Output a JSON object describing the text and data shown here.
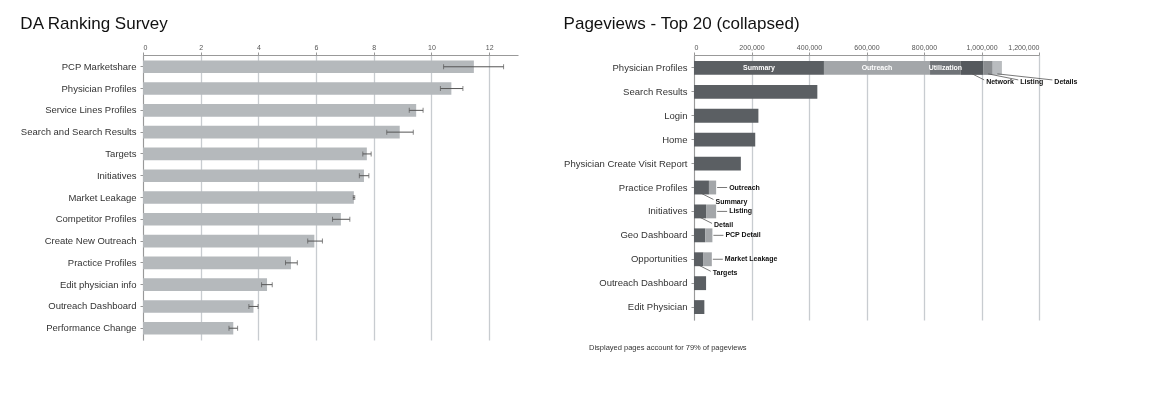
{
  "chart_data": [
    {
      "type": "bar",
      "orientation": "horizontal",
      "title": "DA Ranking Survey",
      "categories": [
        "PCP Marketshare",
        "Physician Profiles",
        "Service Lines Profiles",
        "Search and Search Results",
        "Targets",
        "Initiatives",
        "Market Leakage",
        "Competitor Profiles",
        "Create New Outreach",
        "Practice Profiles",
        "Edit physician info",
        "Outreach Dashboard",
        "Performance Change"
      ],
      "values": [
        11.47,
        10.69,
        9.47,
        8.9,
        7.76,
        7.66,
        7.31,
        6.86,
        5.94,
        5.13,
        4.3,
        3.83,
        3.13
      ],
      "errors": [
        [
          10.42,
          12.5
        ],
        [
          10.31,
          11.09
        ],
        [
          9.23,
          9.71
        ],
        [
          8.45,
          9.37
        ],
        [
          7.62,
          7.91
        ],
        [
          7.5,
          7.83
        ],
        [
          7.29,
          7.34
        ],
        [
          6.57,
          7.17
        ],
        [
          5.71,
          6.22
        ],
        [
          4.94,
          5.35
        ],
        [
          4.11,
          4.48
        ],
        [
          3.67,
          3.99
        ],
        [
          2.98,
          3.28
        ]
      ],
      "color": "#b5b9bc",
      "xlim": [
        0,
        13
      ],
      "xticks": [
        0,
        2,
        4,
        6,
        8,
        10,
        12
      ],
      "grid": "x"
    },
    {
      "type": "bar",
      "orientation": "horizontal",
      "stacked": true,
      "title": "Pageviews - Top 20 (collapsed)",
      "categories": [
        "Physician Profiles",
        "Search Results",
        "Login",
        "Home",
        "Physician Create Visit Report",
        "Practice Profiles",
        "Initiatives",
        "Geo Dashboard",
        "Opportunities",
        "Outreach Dashboard",
        "Edit Physician"
      ],
      "series": [
        {
          "color": "#5b5f63",
          "values": [
            452000,
            429000,
            224000,
            213000,
            163000,
            52000,
            42000,
            39000,
            33000,
            42000,
            36000
          ],
          "value_labels": [
            "Summary",
            null,
            null,
            null,
            null,
            null,
            null,
            null,
            null,
            null,
            null
          ]
        },
        {
          "color": "#a3a6a9",
          "values": [
            369000,
            null,
            null,
            null,
            null,
            25000,
            35000,
            25000,
            29000,
            null,
            null
          ],
          "value_labels": [
            "Outreach",
            null,
            null,
            null,
            null,
            null,
            null,
            null,
            null,
            null,
            null
          ]
        },
        {
          "color": "#6f7377",
          "values": [
            107000,
            null,
            null,
            null,
            null,
            null,
            null,
            null,
            null,
            null,
            null
          ],
          "value_labels": [
            "Utilization",
            null,
            null,
            null,
            null,
            null,
            null,
            null,
            null,
            null,
            null
          ]
        },
        {
          "color": "#55595d",
          "values": [
            79000,
            null,
            null,
            null,
            null,
            null,
            null,
            null,
            null,
            null,
            null
          ]
        },
        {
          "color": "#8b8e91",
          "values": [
            32000,
            null,
            null,
            null,
            null,
            null,
            null,
            null,
            null,
            null,
            null
          ]
        },
        {
          "color": "#b9bcbf",
          "values": [
            32000,
            null,
            null,
            null,
            null,
            null,
            null,
            null,
            null,
            null,
            null
          ]
        }
      ],
      "xlim": [
        0,
        1200000
      ],
      "xticks": [
        0,
        {
          "value": 200000,
          "label": "200,000"
        },
        {
          "value": 400000,
          "label": "400,000"
        },
        {
          "value": 600000,
          "label": "600,000"
        },
        {
          "value": 800000,
          "label": "800,000"
        },
        {
          "value": 1000000,
          "label": "1,000,000"
        },
        {
          "value": 1200000,
          "label": "1,200,000"
        }
      ],
      "grid": "x",
      "annotations": [
        {
          "text": "Network",
          "x": 967500,
          "y": "Physician Profiles"
        },
        {
          "text": "Listing",
          "x": 1023000,
          "y": "Physician Profiles"
        },
        {
          "text": "Details",
          "x": 1055000,
          "y": "Physician Profiles"
        },
        {
          "text": "Outreach",
          "x": 77000,
          "y": "Practice Profiles"
        },
        {
          "text": "Summary",
          "x": 26000,
          "y": "Practice Profiles"
        },
        {
          "text": "Listing",
          "x": 77000,
          "y": "Initiatives"
        },
        {
          "text": "Detail",
          "x": 21000,
          "y": "Initiatives"
        },
        {
          "text": "PCP Detail",
          "x": 64000,
          "y": "Geo Dashboard"
        },
        {
          "text": "Market Leakage",
          "x": 62000,
          "y": "Opportunities"
        },
        {
          "text": "Targets",
          "x": 16500,
          "y": "Opportunities"
        },
        "Displayed pages account for 79% of pageviews"
      ]
    }
  ]
}
